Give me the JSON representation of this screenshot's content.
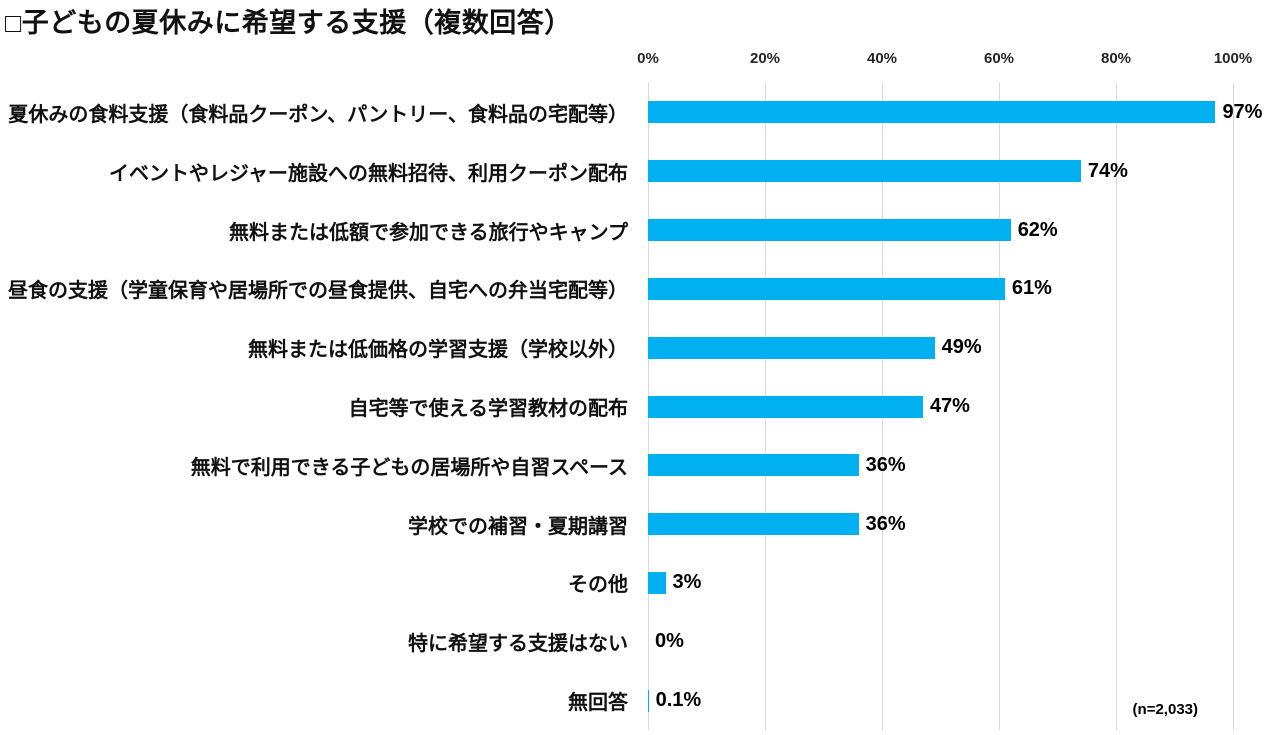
{
  "title": "□子どもの夏休みに希望する支援（複数回答）",
  "sample_note": "(n=2,033)",
  "colors": {
    "bar": "#00B0F0",
    "gridline": "#D9D9D9",
    "axis_text": "#262626",
    "label_text": "#111111"
  },
  "chart_data": {
    "type": "bar",
    "orientation": "horizontal",
    "title": "□子どもの夏休みに希望する支援（複数回答）",
    "categories": [
      "夏休みの食料支援（食料品クーポン、パントリー、食料品の宅配等）",
      "イベントやレジャー施設への無料招待、利用クーポン配布",
      "無料または低額で参加できる旅行やキャンプ",
      "昼食の支援（学童保育や居場所での昼食提供、自宅への弁当宅配等）",
      "無料または低価格の学習支援（学校以外）",
      "自宅等で使える学習教材の配布",
      "無料で利用できる子どもの居場所や自習スペース",
      "学校での補習・夏期講習",
      "その他",
      "特に希望する支援はない",
      "無回答"
    ],
    "values": [
      97,
      74,
      62,
      61,
      49,
      47,
      36,
      36,
      3,
      0,
      0.1
    ],
    "value_labels": [
      "97%",
      "74%",
      "62%",
      "61%",
      "49%",
      "47%",
      "36%",
      "36%",
      "3%",
      "0%",
      "0.1%"
    ],
    "x_ticks": [
      "0%",
      "20%",
      "40%",
      "60%",
      "80%",
      "100%"
    ],
    "xlim": [
      0,
      100
    ],
    "grid": true,
    "legend": false,
    "annotation": "(n=2,033)"
  }
}
